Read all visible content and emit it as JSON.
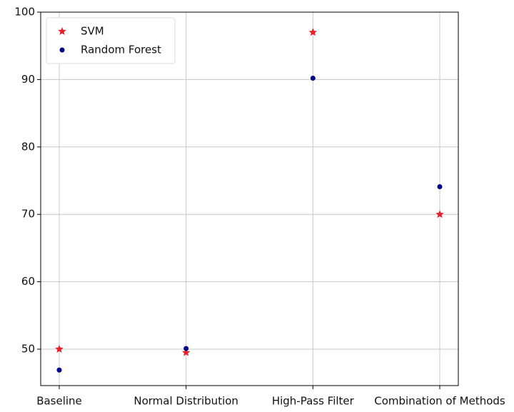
{
  "chart_data": {
    "type": "scatter",
    "categories": [
      "Baseline",
      "Normal Distribution",
      "High-Pass Filter",
      "Combination of Methods"
    ],
    "series": [
      {
        "name": "SVM",
        "color": "#e8202a",
        "marker": "star",
        "values": [
          50.0,
          49.5,
          97.0,
          70.0
        ]
      },
      {
        "name": "Random Forest",
        "color": "#00008b",
        "marker": "circle",
        "values": [
          46.9,
          50.1,
          90.2,
          74.1
        ]
      }
    ],
    "ylim": [
      44.6,
      100
    ],
    "yticks": [
      50,
      60,
      70,
      80,
      90,
      100
    ],
    "grid": true,
    "legend": "upper left"
  }
}
